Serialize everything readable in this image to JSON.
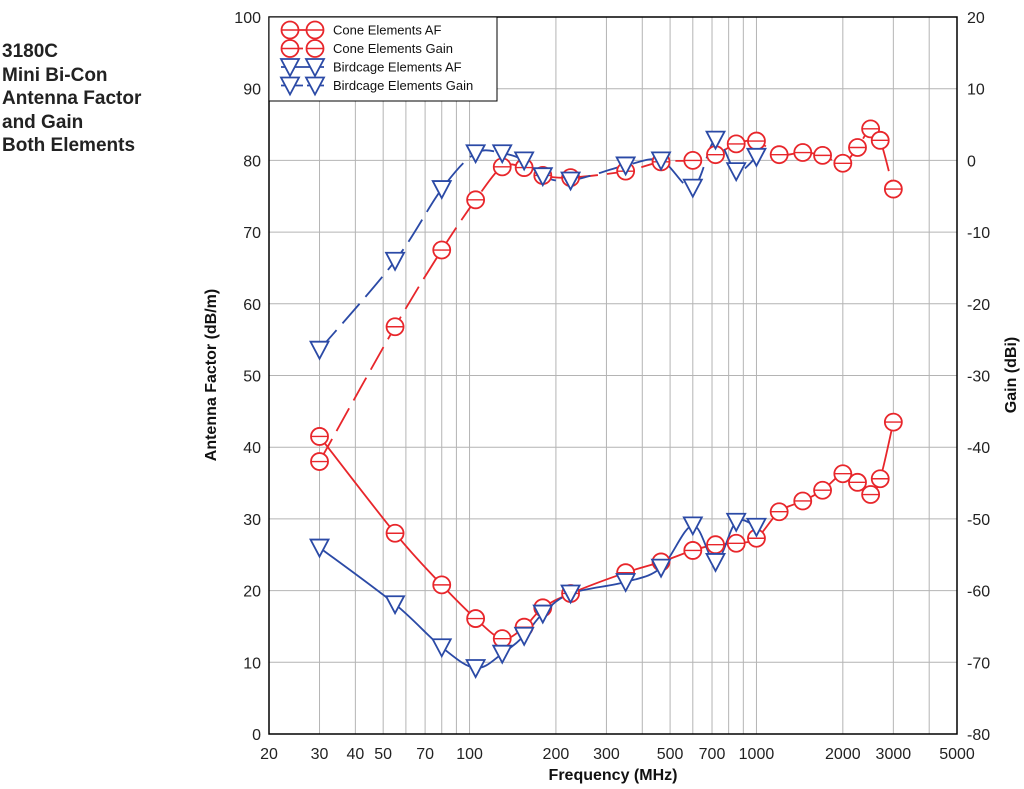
{
  "side_title": [
    "3180C",
    "Mini Bi-Con",
    "Antenna Factor",
    "and Gain",
    "Both Elements"
  ],
  "colors": {
    "cone": "#e8262b",
    "birdcage": "#2b4aa6",
    "grid": "#b4b4b4",
    "frame": "#000000"
  },
  "chart_data": {
    "type": "line",
    "title": "",
    "xlabel": "Frequency  (MHz)",
    "ylabel": "Antenna Factor (dB/m)",
    "y2label": "Gain (dBi)",
    "x_scale": "log",
    "xlim": [
      20,
      5000
    ],
    "ylim": [
      0,
      100
    ],
    "y2lim": [
      -80,
      20
    ],
    "grid": true,
    "legend_position": "top-left",
    "x_ticks": [
      20,
      30,
      40,
      50,
      70,
      100,
      200,
      300,
      500,
      700,
      1000,
      2000,
      3000,
      5000
    ],
    "x_tick_labels": [
      "20",
      "30",
      "40",
      "50",
      "70",
      "100",
      "200",
      "300",
      "500",
      "700",
      "1000",
      "2000",
      "3000",
      "5000"
    ],
    "y_ticks": [
      0,
      10,
      20,
      30,
      40,
      50,
      60,
      70,
      80,
      90,
      100
    ],
    "y_tick_labels": [
      "0",
      "10",
      "20",
      "30",
      "40",
      "50",
      "60",
      "70",
      "80",
      "90",
      "100"
    ],
    "y2_ticks": [
      -80,
      -70,
      -60,
      -50,
      -40,
      -30,
      -20,
      -10,
      0,
      10,
      20
    ],
    "y2_tick_labels": [
      "-80",
      "-70",
      "-60",
      "-50",
      "-40",
      "-30",
      "-20",
      "-10",
      "0",
      "10",
      "20"
    ],
    "series": [
      {
        "name": "Cone Elements AF",
        "axis": "left",
        "color": "cone",
        "marker": "circle",
        "dash": "solid",
        "x": [
          30,
          55,
          80,
          105,
          130,
          155,
          180,
          225,
          350,
          465,
          600,
          720,
          850,
          1000,
          1200,
          1450,
          1700,
          2000,
          2250,
          2500,
          2700,
          3000
        ],
        "y": [
          41.5,
          28,
          20.8,
          16.1,
          13.3,
          14.9,
          17.6,
          19.6,
          22.5,
          24,
          25.6,
          26.4,
          26.6,
          27.3,
          31,
          32.5,
          34,
          36.3,
          35.1,
          33.4,
          35.6,
          43.5
        ]
      },
      {
        "name": "Cone Elements Gain",
        "axis": "right",
        "color": "cone",
        "marker": "circle",
        "dash": "dash",
        "x": [
          30,
          55,
          80,
          105,
          130,
          155,
          180,
          225,
          350,
          465,
          600,
          720,
          850,
          1000,
          1200,
          1450,
          1700,
          2000,
          2250,
          2500,
          2700,
          3000
        ],
        "y": [
          -42,
          -23.2,
          -12.5,
          -5.5,
          -0.9,
          -1,
          -2.1,
          -2.4,
          -1.5,
          -0.2,
          0,
          0.8,
          2.3,
          2.7,
          0.8,
          1.1,
          0.7,
          -0.4,
          1.8,
          4.4,
          2.8,
          -4
        ]
      },
      {
        "name": "Birdcage Elements AF",
        "axis": "left",
        "color": "birdcage",
        "marker": "triangle",
        "dash": "solid",
        "x": [
          30,
          55,
          80,
          105,
          130,
          155,
          180,
          225,
          350,
          465,
          600,
          720,
          850,
          1000
        ],
        "y": [
          26,
          18.1,
          12.1,
          9.2,
          11.2,
          13.7,
          16.8,
          19.6,
          21.2,
          23.2,
          29.1,
          24,
          29.6,
          28.9
        ]
      },
      {
        "name": "Birdcage Elements Gain",
        "axis": "right",
        "color": "birdcage",
        "marker": "triangle",
        "dash": "dash",
        "x": [
          30,
          55,
          80,
          105,
          130,
          155,
          180,
          225,
          350,
          465,
          600,
          720,
          850,
          1000
        ],
        "y": [
          -26.4,
          -14,
          -4,
          1,
          1,
          0,
          -2.2,
          -2.8,
          -0.7,
          0,
          -3.8,
          2.9,
          -1.5,
          0.5
        ]
      }
    ]
  }
}
